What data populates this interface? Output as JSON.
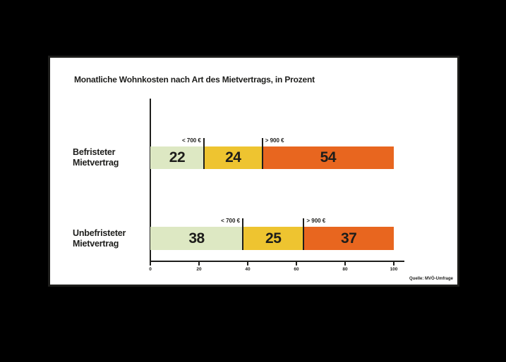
{
  "colors": {
    "background": "#000000",
    "panel_bg": "#ffffff",
    "frame": "#1d1d1b",
    "text": "#1d1d1b"
  },
  "chart_data": {
    "type": "bar",
    "variant": "horizontal-stacked",
    "title": "Monatliche Wohnkosten nach Art des Mietvertrags, in Prozent",
    "categories": [
      [
        "Befristeter",
        "Mietvertrag"
      ],
      [
        "Unbefristeter",
        "Mietvertrag"
      ]
    ],
    "series": [
      {
        "color": "#dde8c3",
        "values": [
          22,
          38
        ]
      },
      {
        "color": "#eec430",
        "values": [
          24,
          25
        ]
      },
      {
        "color": "#e8661f",
        "values": [
          54,
          37
        ]
      }
    ],
    "annotations": [
      {
        "row": 0,
        "label": "< 700 €",
        "at": 22,
        "side": "left-of"
      },
      {
        "row": 0,
        "label": "> 900 €",
        "at": 46,
        "side": "right-of"
      },
      {
        "row": 1,
        "label": "< 700 €",
        "at": 38,
        "side": "left-of"
      },
      {
        "row": 1,
        "label": "> 900 €",
        "at": 63,
        "side": "right-of"
      }
    ],
    "x_ticks": [
      0,
      20,
      40,
      60,
      80,
      100
    ],
    "xlim": [
      0,
      100
    ],
    "grid": false,
    "legend": false,
    "source": "Quelle: MVÖ-Umfrage"
  }
}
